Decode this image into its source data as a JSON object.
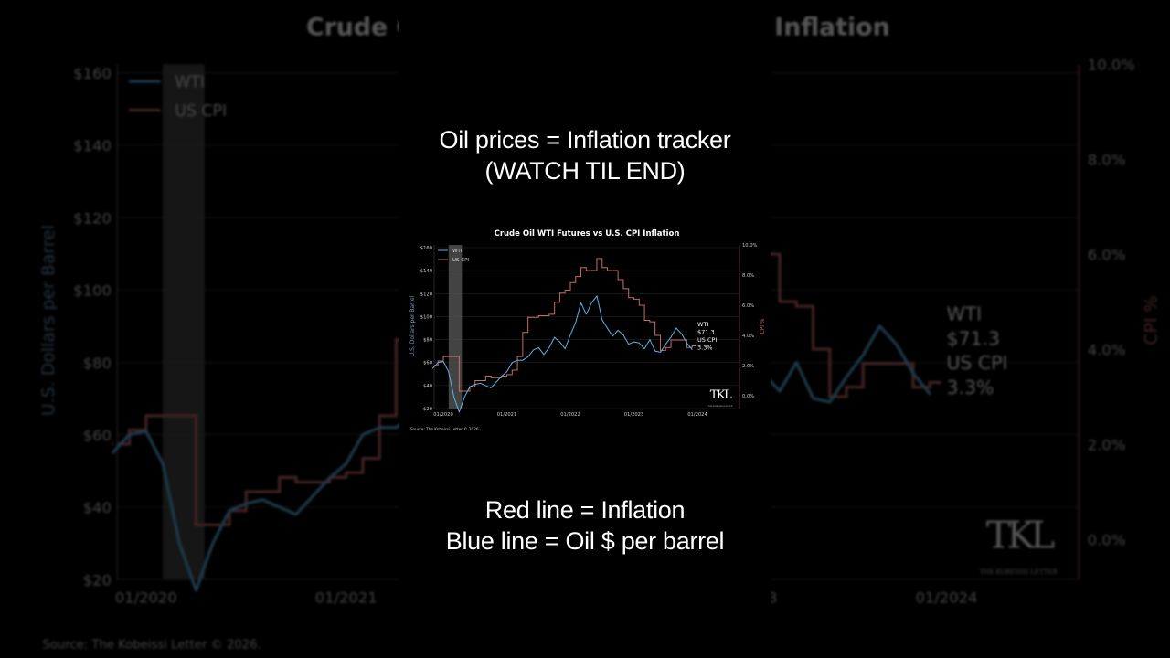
{
  "captions": {
    "top": [
      "Oil prices = Inflation tracker",
      "(WATCH TIL END)"
    ],
    "bottom": [
      "Red line = Inflation",
      "Blue line = Oil $ per barrel"
    ]
  },
  "chart_data": {
    "type": "line",
    "title": "Crude Oil WTI Futures vs U.S. CPI Inflation",
    "ylabel": "U.S. Dollars per Barrel",
    "y2label": "CPI %",
    "ylim": [
      20,
      160
    ],
    "y2lim": [
      -1,
      10
    ],
    "yticks": [
      "$20",
      "$40",
      "$60",
      "$80",
      "$100",
      "$120",
      "$140",
      "$160"
    ],
    "y2ticks": [
      "0.0%",
      "2.0%",
      "4.0%",
      "6.0%",
      "8.0%",
      "10.0%"
    ],
    "xticks": [
      "01/2020",
      "01/2021",
      "01/2022",
      "01/2023",
      "01/2024"
    ],
    "grid": true,
    "legend": {
      "position": "top-left",
      "entries": [
        "WTI",
        "US CPI"
      ]
    },
    "shaded_period": [
      "2020-02",
      "2020-04"
    ],
    "colors": {
      "wti": "#5ab4e6",
      "cpi": "#c96a6a",
      "shade": "#5a5a5a"
    },
    "x": [
      "2019-11",
      "2019-12",
      "2020-01",
      "2020-02",
      "2020-03",
      "2020-04",
      "2020-05",
      "2020-06",
      "2020-07",
      "2020-08",
      "2020-09",
      "2020-10",
      "2020-11",
      "2020-12",
      "2021-01",
      "2021-02",
      "2021-03",
      "2021-04",
      "2021-05",
      "2021-06",
      "2021-07",
      "2021-08",
      "2021-09",
      "2021-10",
      "2021-11",
      "2021-12",
      "2022-01",
      "2022-02",
      "2022-03",
      "2022-04",
      "2022-05",
      "2022-06",
      "2022-07",
      "2022-08",
      "2022-09",
      "2022-10",
      "2022-11",
      "2022-12",
      "2023-01",
      "2023-02",
      "2023-03",
      "2023-04",
      "2023-05",
      "2023-06",
      "2023-07",
      "2023-08",
      "2023-09",
      "2023-10",
      "2023-11",
      "2023-12"
    ],
    "series": [
      {
        "name": "WTI",
        "axis": "left",
        "values": [
          55,
          60,
          61,
          52,
          30,
          17,
          30,
          39,
          41,
          42,
          40,
          38,
          43,
          48,
          52,
          60,
          62,
          62,
          65,
          71,
          73,
          67,
          73,
          82,
          78,
          72,
          84,
          95,
          112,
          102,
          112,
          118,
          97,
          90,
          83,
          88,
          84,
          76,
          78,
          77,
          72,
          80,
          70,
          69,
          76,
          82,
          90,
          85,
          77,
          71.3
        ]
      },
      {
        "name": "US CPI",
        "axis": "right",
        "values": [
          2.0,
          2.3,
          2.6,
          2.6,
          2.6,
          0.3,
          0.3,
          0.6,
          1.0,
          1.0,
          1.3,
          1.2,
          1.2,
          1.3,
          1.4,
          1.7,
          2.6,
          4.2,
          5.2,
          5.2,
          5.3,
          5.3,
          5.4,
          6.2,
          6.8,
          7.0,
          7.5,
          7.9,
          8.5,
          8.3,
          8.3,
          9.1,
          8.5,
          8.3,
          8.3,
          7.7,
          7.1,
          6.5,
          6.4,
          6.0,
          5.0,
          4.9,
          4.0,
          3.0,
          3.2,
          3.7,
          3.7,
          3.7,
          3.2,
          3.3
        ]
      }
    ],
    "annotation": [
      "WTI",
      "$71.3",
      "US CPI",
      "3.3%"
    ],
    "source": "Source: The Kobeissi Letter © 2026.",
    "logo": {
      "mark": "TKL",
      "text": "THE KOBEISSI LETTER"
    }
  }
}
